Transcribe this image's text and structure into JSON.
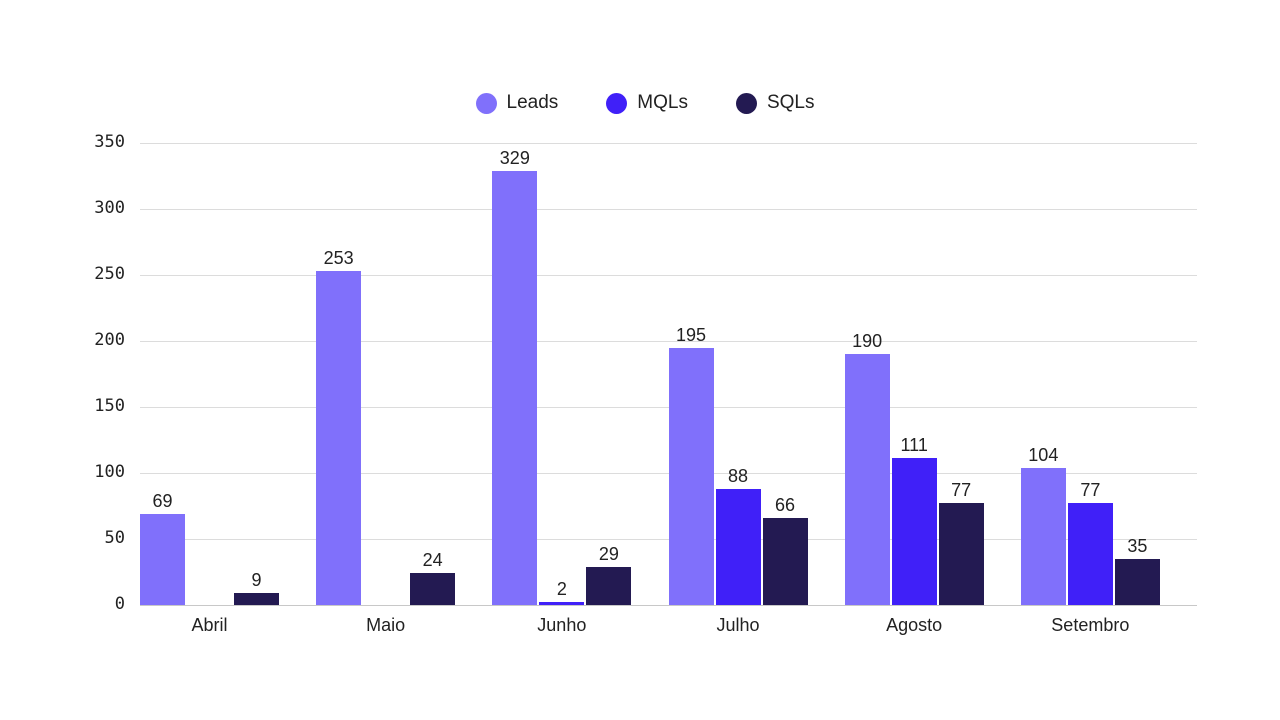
{
  "chart_data": {
    "type": "bar",
    "title": "",
    "xlabel": "",
    "ylabel": "",
    "ylim": [
      0,
      350
    ],
    "yticks": [
      0,
      50,
      100,
      150,
      200,
      250,
      300,
      350
    ],
    "grid": true,
    "legend_position": "top-center",
    "categories": [
      "Abril",
      "Maio",
      "Junho",
      "Julho",
      "Agosto",
      "Setembro"
    ],
    "series": [
      {
        "name": "Leads",
        "color": "#8070fb",
        "values": [
          69,
          253,
          329,
          195,
          190,
          104
        ]
      },
      {
        "name": "MQLs",
        "color": "#4020f8",
        "values": [
          0,
          0,
          2,
          88,
          111,
          77
        ]
      },
      {
        "name": "SQLs",
        "color": "#231a52",
        "values": [
          9,
          24,
          29,
          66,
          77,
          35
        ]
      }
    ],
    "data_labels": {
      "Leads": [
        "69",
        "253",
        "329",
        "195",
        "190",
        "104"
      ],
      "MQLs": [
        "",
        "",
        "2",
        "88",
        "111",
        "77"
      ],
      "SQLs": [
        "9",
        "24",
        "29",
        "66",
        "77",
        "35"
      ]
    }
  },
  "legend": {
    "items": [
      {
        "label": "Leads",
        "color": "#8070fb"
      },
      {
        "label": "MQLs",
        "color": "#4020f8"
      },
      {
        "label": "SQLs",
        "color": "#231a52"
      }
    ]
  },
  "y_axis": {
    "ticks": [
      "0",
      "50",
      "100",
      "150",
      "200",
      "250",
      "300",
      "350"
    ]
  },
  "x_axis": {
    "labels": [
      "Abril",
      "Maio",
      "Junho",
      "Julho",
      "Agosto",
      "Setembro"
    ]
  }
}
